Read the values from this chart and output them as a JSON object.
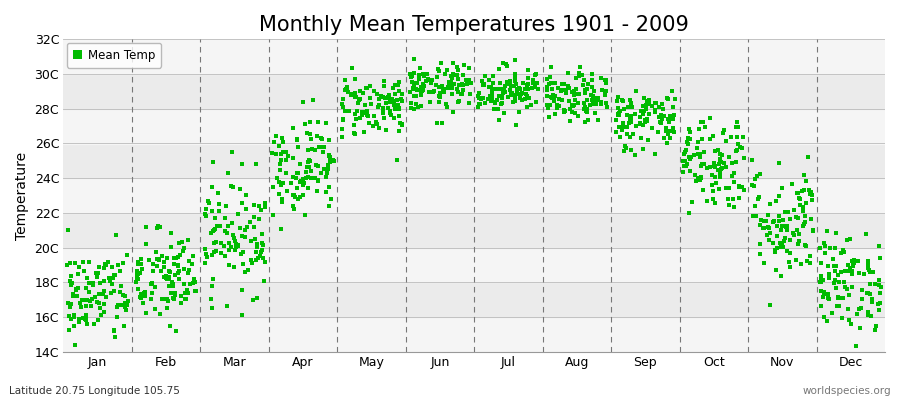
{
  "title": "Monthly Mean Temperatures 1901 - 2009",
  "ylabel": "Temperature",
  "xlabel_bottom": "Latitude 20.75 Longitude 105.75",
  "watermark": "worldspecies.org",
  "legend_label": "Mean Temp",
  "dot_color": "#00bb00",
  "bg_color": "#ffffff",
  "plot_bg_color": "#ffffff",
  "stripe_even_color": "#f0f0f0",
  "stripe_odd_color": "#e8e8e8",
  "title_fontsize": 15,
  "axis_fontsize": 10,
  "tick_fontsize": 9,
  "months": [
    "Jan",
    "Feb",
    "Mar",
    "Apr",
    "May",
    "Jun",
    "Jul",
    "Aug",
    "Sep",
    "Oct",
    "Nov",
    "Dec"
  ],
  "mean_temps": [
    17.2,
    18.2,
    20.8,
    24.8,
    28.2,
    29.2,
    29.1,
    28.6,
    27.4,
    25.0,
    21.5,
    18.0
  ],
  "temp_spreads": [
    1.4,
    1.4,
    1.7,
    1.4,
    0.9,
    0.7,
    0.7,
    0.7,
    0.9,
    1.4,
    1.7,
    1.4
  ],
  "ylim": [
    14,
    32
  ],
  "yticks": [
    14,
    16,
    18,
    20,
    22,
    24,
    26,
    28,
    30,
    32
  ],
  "n_years": 109
}
